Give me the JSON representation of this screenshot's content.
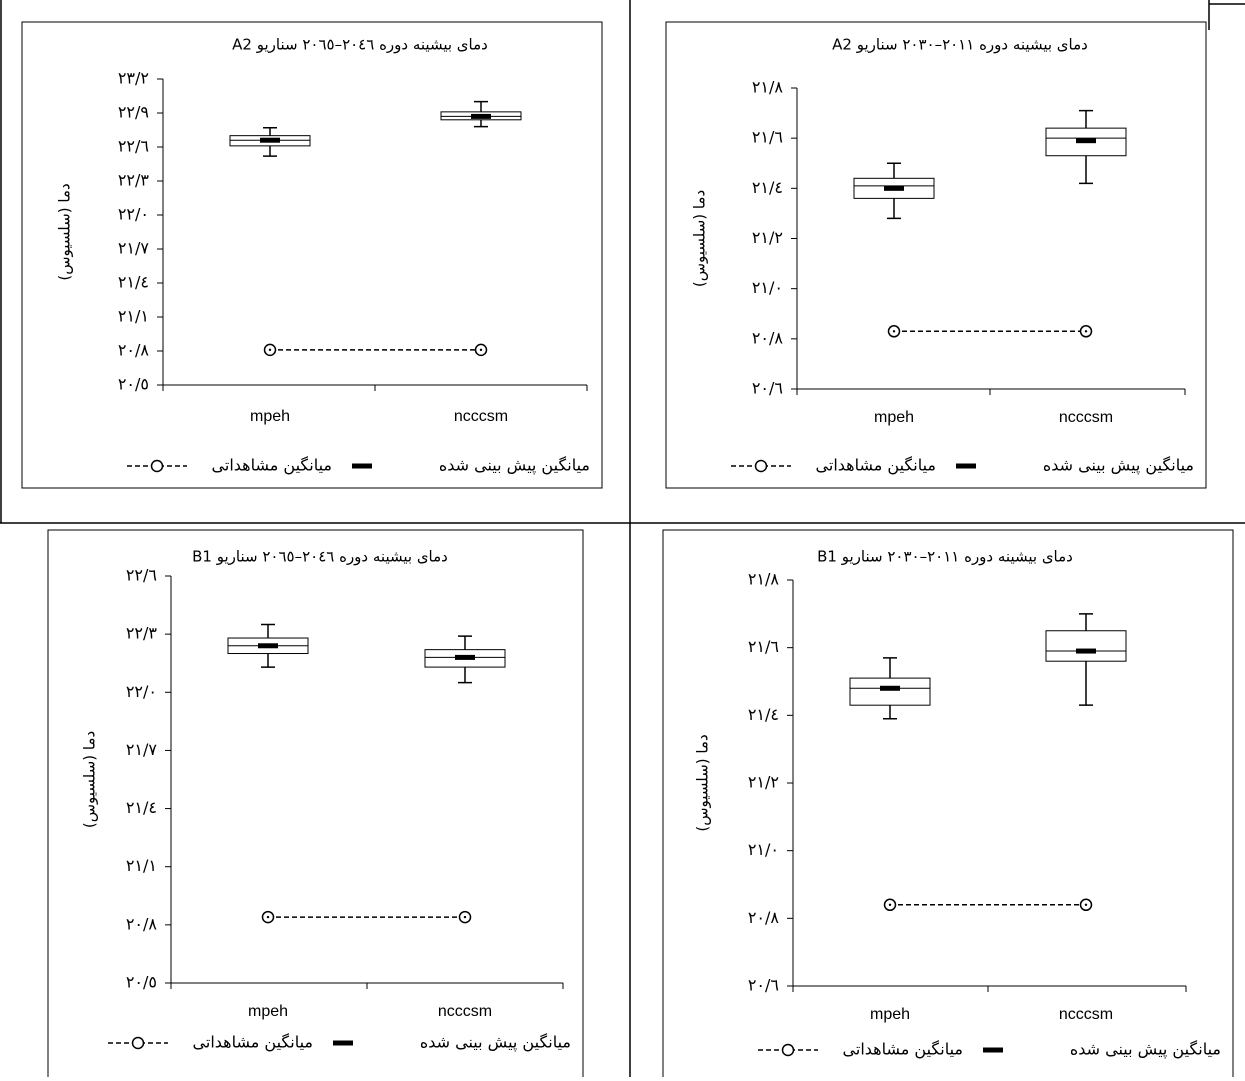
{
  "chart_data": [
    {
      "type": "box",
      "title": "دمای بیشینه دوره ۲۰٤٦–۲۰٦٥ سناریو A2",
      "y_label": "دما (سلسیوس)",
      "categories": [
        "mpeh",
        "ncccsm"
      ],
      "boxes": [
        {
          "whislo": 22.52,
          "q1": 22.61,
          "med": 22.66,
          "q3": 22.7,
          "whishi": 22.77
        },
        {
          "whislo": 22.78,
          "q1": 22.84,
          "med": 22.87,
          "q3": 22.91,
          "whishi": 23.0
        }
      ],
      "series": [
        {
          "name": "میانگین پیش بینی شده",
          "color": "#000000",
          "values": [
            22.66,
            22.87
          ]
        },
        {
          "name": "میانگین مشاهداتی",
          "color": "#000000",
          "values": [
            20.81,
            20.81
          ]
        }
      ],
      "ylim": [
        20.5,
        23.2
      ],
      "yticks": [
        {
          "value": 20.5,
          "label": "۲۰/٥"
        },
        {
          "value": 20.8,
          "label": "۲۰/۸"
        },
        {
          "value": 21.1,
          "label": "۲۱/۱"
        },
        {
          "value": 21.4,
          "label": "۲۱/٤"
        },
        {
          "value": 21.7,
          "label": "۲۱/۷"
        },
        {
          "value": 22.0,
          "label": "۲۲/۰"
        },
        {
          "value": 22.3,
          "label": "۲۲/۳"
        },
        {
          "value": 22.6,
          "label": "۲۲/٦"
        },
        {
          "value": 22.9,
          "label": "۲۲/۹"
        },
        {
          "value": 23.2,
          "label": "۲۳/۲"
        }
      ]
    },
    {
      "type": "box",
      "title": "دمای بیشینه دوره ۲۰۱۱–۲۰۳۰ سناریو A2",
      "y_label": "دما (سلسیوس)",
      "categories": [
        "mpeh",
        "ncccsm"
      ],
      "boxes": [
        {
          "whislo": 21.28,
          "q1": 21.36,
          "med": 21.41,
          "q3": 21.44,
          "whishi": 21.5
        },
        {
          "whislo": 21.42,
          "q1": 21.53,
          "med": 21.6,
          "q3": 21.64,
          "whishi": 21.71
        }
      ],
      "series": [
        {
          "name": "میانگین پیش بینی شده",
          "color": "#000000",
          "values": [
            21.4,
            21.59
          ]
        },
        {
          "name": "میانگین مشاهداتی",
          "color": "#000000",
          "values": [
            20.83,
            20.83
          ]
        }
      ],
      "ylim": [
        20.6,
        21.8
      ],
      "yticks": [
        {
          "value": 20.6,
          "label": "۲۰/٦"
        },
        {
          "value": 20.8,
          "label": "۲۰/۸"
        },
        {
          "value": 21.0,
          "label": "۲۱/۰"
        },
        {
          "value": 21.2,
          "label": "۲۱/۲"
        },
        {
          "value": 21.4,
          "label": "۲۱/٤"
        },
        {
          "value": 21.6,
          "label": "۲۱/٦"
        },
        {
          "value": 21.8,
          "label": "۲۱/۸"
        }
      ]
    },
    {
      "type": "box",
      "title": "دمای بیشینه دوره ۲۰٤٦–۲۰٦٥ سناریو B1",
      "y_label": "دما (سلسیوس)",
      "categories": [
        "mpeh",
        "ncccsm"
      ],
      "boxes": [
        {
          "whislo": 22.13,
          "q1": 22.2,
          "med": 22.24,
          "q3": 22.28,
          "whishi": 22.35
        },
        {
          "whislo": 22.05,
          "q1": 22.13,
          "med": 22.18,
          "q3": 22.22,
          "whishi": 22.29
        }
      ],
      "series": [
        {
          "name": "میانگین پیش بینی شده",
          "color": "#000000",
          "values": [
            22.24,
            22.18
          ]
        },
        {
          "name": "میانگین مشاهداتی",
          "color": "#000000",
          "values": [
            20.84,
            20.84
          ]
        }
      ],
      "ylim": [
        20.5,
        22.6
      ],
      "yticks": [
        {
          "value": 20.5,
          "label": "۲۰/٥"
        },
        {
          "value": 20.8,
          "label": "۲۰/۸"
        },
        {
          "value": 21.1,
          "label": "۲۱/۱"
        },
        {
          "value": 21.4,
          "label": "۲۱/٤"
        },
        {
          "value": 21.7,
          "label": "۲۱/۷"
        },
        {
          "value": 22.0,
          "label": "۲۲/۰"
        },
        {
          "value": 22.3,
          "label": "۲۲/۳"
        },
        {
          "value": 22.6,
          "label": "۲۲/٦"
        }
      ]
    },
    {
      "type": "box",
      "title": "دمای بیشینه دوره ۲۰۱۱–۲۰۳۰ سناریو B1",
      "y_label": "دما (سلسیوس)",
      "categories": [
        "mpeh",
        "ncccsm"
      ],
      "boxes": [
        {
          "whislo": 21.39,
          "q1": 21.43,
          "med": 21.48,
          "q3": 21.51,
          "whishi": 21.57
        },
        {
          "whislo": 21.43,
          "q1": 21.56,
          "med": 21.59,
          "q3": 21.65,
          "whishi": 21.7
        }
      ],
      "series": [
        {
          "name": "میانگین پیش بینی شده",
          "color": "#000000",
          "values": [
            21.48,
            21.59
          ]
        },
        {
          "name": "میانگین مشاهداتی",
          "color": "#000000",
          "values": [
            20.84,
            20.84
          ]
        }
      ],
      "ylim": [
        20.6,
        21.8
      ],
      "yticks": [
        {
          "value": 20.6,
          "label": "۲۰/٦"
        },
        {
          "value": 20.8,
          "label": "۲۰/۸"
        },
        {
          "value": 21.0,
          "label": "۲۱/۰"
        },
        {
          "value": 21.2,
          "label": "۲۱/۲"
        },
        {
          "value": 21.4,
          "label": "۲۱/٤"
        },
        {
          "value": 21.6,
          "label": "۲۱/٦"
        },
        {
          "value": 21.8,
          "label": "۲۱/۸"
        }
      ]
    }
  ]
}
